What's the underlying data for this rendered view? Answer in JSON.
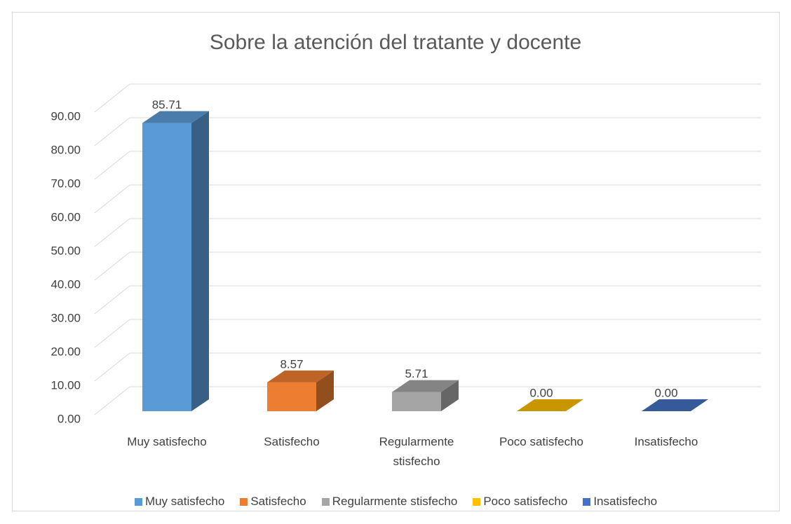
{
  "chart_data": {
    "type": "bar3d",
    "title": "Sobre la atención del tratante y docente",
    "categories": [
      "Muy satisfecho",
      "Satisfecho",
      "Regularmente stisfecho",
      "Poco satisfecho",
      "Insatisfecho"
    ],
    "values": [
      85.71,
      8.57,
      5.71,
      0,
      0
    ],
    "value_labels": [
      "85.71",
      "8.57",
      "5.71",
      "0.00",
      "0.00"
    ],
    "colors": [
      "#5b9bd5",
      "#ed7d31",
      "#a5a5a5",
      "#ffc000",
      "#4472c4"
    ],
    "ylim": [
      0,
      90
    ],
    "yticks": [
      {
        "value": 0,
        "label": "0.00"
      },
      {
        "value": 10,
        "label": "10.00"
      },
      {
        "value": 20,
        "label": "20.00"
      },
      {
        "value": 30,
        "label": "30.00"
      },
      {
        "value": 40,
        "label": "40.00"
      },
      {
        "value": 50,
        "label": "50.00"
      },
      {
        "value": 60,
        "label": "60.00"
      },
      {
        "value": 70,
        "label": "70.00"
      },
      {
        "value": 80,
        "label": "80.00"
      },
      {
        "value": 90,
        "label": "90.00"
      }
    ],
    "grid": true,
    "legend": "bottom"
  }
}
